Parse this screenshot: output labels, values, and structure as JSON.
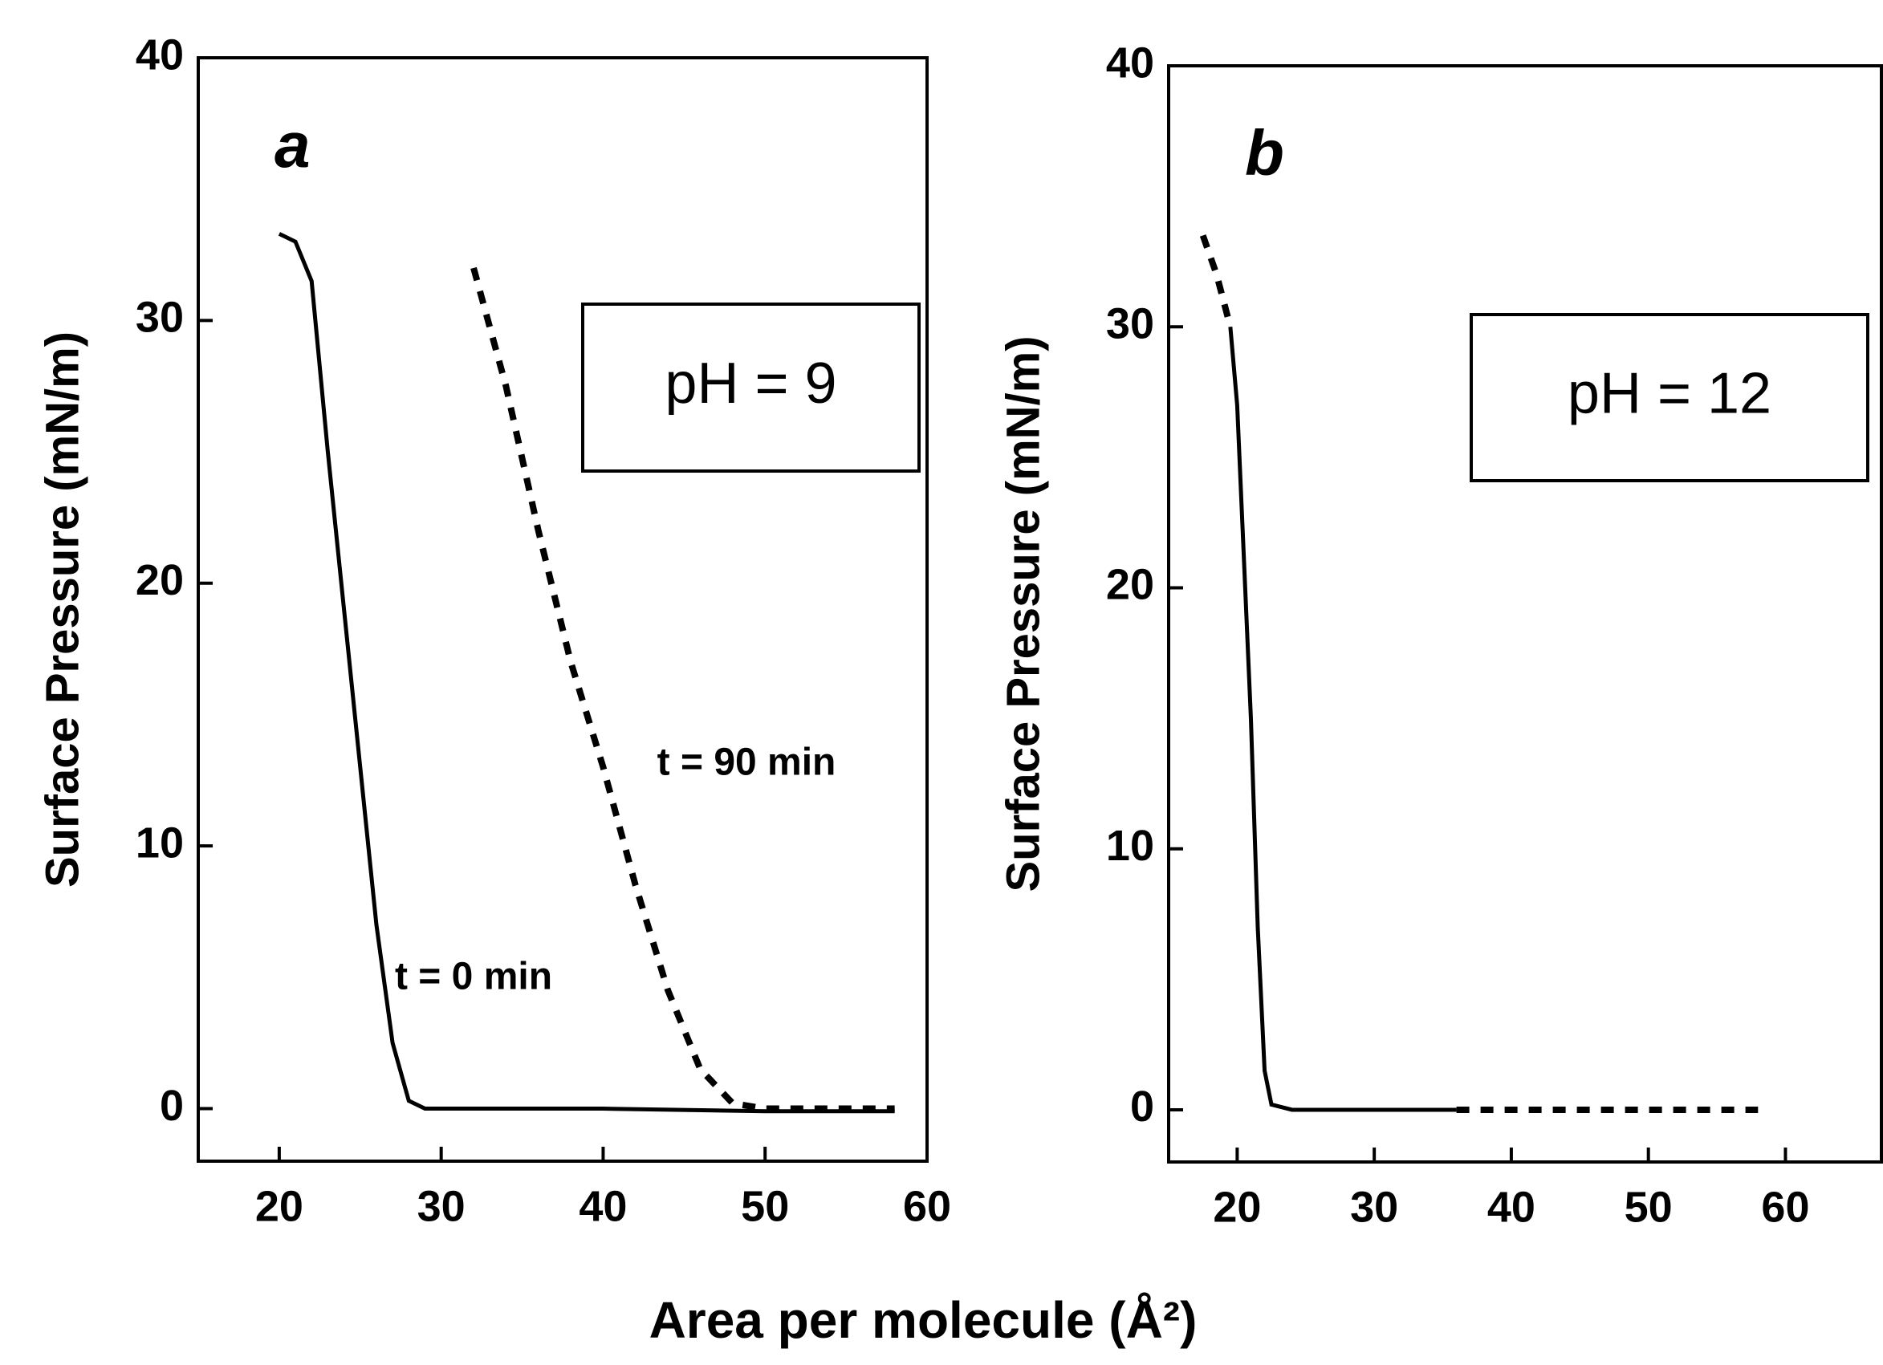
{
  "xlabel": "Area per molecule (Å²)",
  "chart_data": [
    {
      "type": "line",
      "panel_label": "a",
      "annotation": "pH = 9",
      "ylabel": "Surface Pressure (mN/m)",
      "xlim": [
        15,
        60
      ],
      "xticks": [
        20,
        30,
        40,
        50,
        60
      ],
      "ylim": [
        -2,
        40
      ],
      "yticks": [
        0,
        10,
        20,
        30,
        40
      ],
      "series": [
        {
          "name": "t = 0 min",
          "color": "#000000",
          "style": "solid",
          "x": [
            20,
            21,
            22,
            23,
            24,
            25,
            26,
            27,
            28,
            29,
            40,
            50,
            58
          ],
          "values": [
            33.3,
            33,
            31.5,
            25,
            19,
            13,
            7,
            2.5,
            0.3,
            0,
            0,
            -0.1,
            -0.1
          ]
        },
        {
          "name": "t = 90 min",
          "color": "#000000",
          "style": "dashed",
          "x": [
            32,
            34,
            36,
            38,
            40,
            42,
            44,
            46,
            48,
            50,
            58
          ],
          "values": [
            32,
            27.5,
            22,
            17,
            13,
            8.5,
            4.5,
            1.5,
            0.2,
            0,
            0
          ]
        }
      ]
    },
    {
      "type": "line",
      "panel_label": "b",
      "annotation": "pH = 12",
      "ylabel": "Surface Pressure (mN/m)",
      "xlim": [
        15,
        67
      ],
      "xticks": [
        20,
        30,
        40,
        50,
        60
      ],
      "ylim": [
        -2,
        40
      ],
      "yticks": [
        0,
        10,
        20,
        30,
        40
      ],
      "series": [
        {
          "color": "#000000",
          "style": "solid",
          "x": [
            19.5,
            20,
            21,
            21.5,
            22,
            22.5,
            24,
            36
          ],
          "values": [
            30,
            27,
            15,
            7,
            1.5,
            0.2,
            0,
            0
          ]
        },
        {
          "color": "#000000",
          "style": "dashed",
          "x": [
            17.5,
            18.5,
            19.5,
            27,
            36,
            46,
            58
          ],
          "values": [
            33.5,
            32,
            30,
            null,
            0,
            0,
            0
          ]
        }
      ]
    }
  ]
}
